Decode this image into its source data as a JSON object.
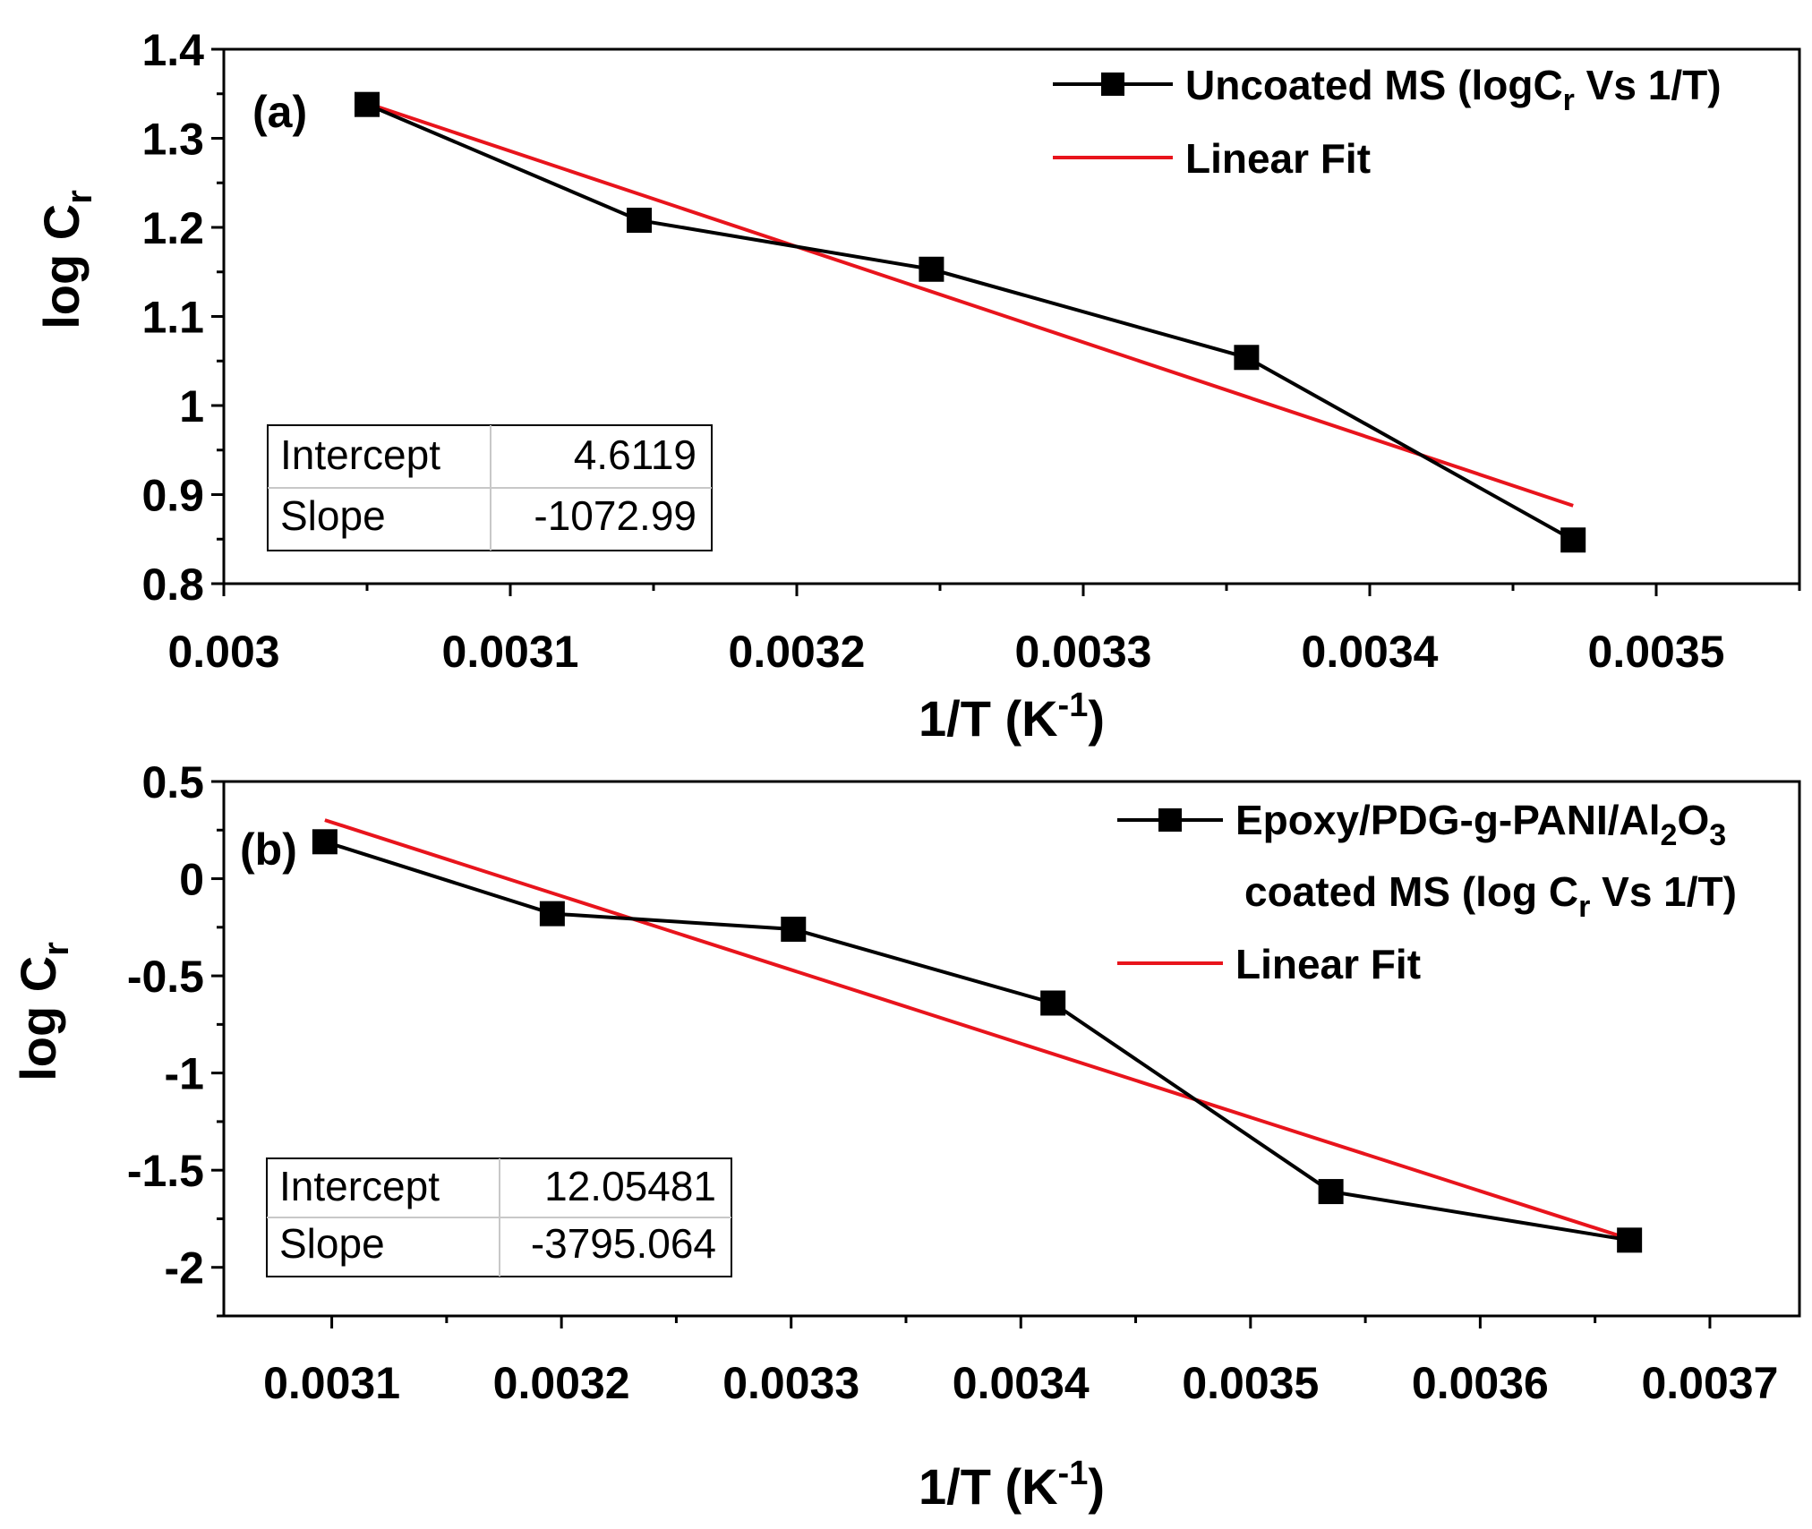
{
  "chart_data": [
    {
      "type": "line",
      "panel_label": "(a)",
      "xlabel": "1/T (K",
      "xlabel_sup": "-1",
      "xlabel_end": ")",
      "ylabel": "log C",
      "ylabel_sub": "r",
      "xlim": [
        0.003,
        0.00355
      ],
      "ylim": [
        0.8,
        1.4
      ],
      "x_ticks": [
        0.003,
        0.0031,
        0.0032,
        0.0033,
        0.0034,
        0.0035
      ],
      "x_tick_labels": [
        "0.003",
        "0.0031",
        "0.0032",
        "0.0033",
        "0.0034",
        "0.0035"
      ],
      "y_ticks": [
        0.8,
        0.9,
        1.0,
        1.1,
        1.2,
        1.3,
        1.4
      ],
      "y_tick_labels": [
        "0.8",
        "0.9",
        "1",
        "1.1",
        "1.2",
        "1.3",
        "1.4"
      ],
      "series": [
        {
          "name": "Uncoated MS (logC",
          "name_sub": "r",
          "name_end": " Vs 1/T)",
          "color": "#000000",
          "marker": "square",
          "x": [
            0.00305,
            0.003145,
            0.003247,
            0.003357,
            0.003471
          ],
          "values": [
            1.338,
            1.208,
            1.153,
            1.054,
            0.849
          ]
        },
        {
          "name": "Linear Fit",
          "color": "#e8141c",
          "marker": "none",
          "intercept": 4.6119,
          "slope": -1072.99,
          "x_range": [
            0.00305,
            0.003471
          ]
        }
      ],
      "stats_table": {
        "rows": [
          {
            "label": "Intercept",
            "value": "4.6119"
          },
          {
            "label": "Slope",
            "value": "-1072.99"
          }
        ]
      },
      "legend_position": "top-right"
    },
    {
      "type": "line",
      "panel_label": "(b)",
      "xlabel": "1/T (K",
      "xlabel_sup": "-1",
      "xlabel_end": ")",
      "ylabel": "log C",
      "ylabel_sub": "r",
      "xlim": [
        0.003053,
        0.003739
      ],
      "ylim": [
        -2.25,
        0.5
      ],
      "x_ticks": [
        0.0031,
        0.0032,
        0.0033,
        0.0034,
        0.0035,
        0.0036,
        0.0037
      ],
      "x_tick_labels": [
        "0.0031",
        "0.0032",
        "0.0033",
        "0.0034",
        "0.0035",
        "0.0036",
        "0.0037"
      ],
      "y_ticks": [
        -2,
        -1.5,
        -1,
        -0.5,
        0,
        0.5
      ],
      "y_tick_labels": [
        "-2",
        "-1.5",
        "-1",
        "-0.5",
        "0",
        "0.5"
      ],
      "series": [
        {
          "name": "Epoxy/PDG-g-PANI/Al",
          "name_sub1": "2",
          "name_mid": "O",
          "name_sub2": "3",
          "name_line2": "coated MS (log C",
          "name_line2_sub": "r",
          "name_line2_end": " Vs 1/T)",
          "color": "#000000",
          "marker": "square",
          "x": [
            0.003097,
            0.003196,
            0.003301,
            0.003414,
            0.003535,
            0.003665
          ],
          "values": [
            0.19,
            -0.18,
            -0.26,
            -0.64,
            -1.61,
            -1.86
          ]
        },
        {
          "name": "Linear Fit",
          "color": "#e8141c",
          "marker": "none",
          "intercept": 12.05481,
          "slope": -3795.064,
          "x_range": [
            0.003097,
            0.003665
          ]
        }
      ],
      "stats_table": {
        "rows": [
          {
            "label": "Intercept",
            "value": "12.05481"
          },
          {
            "label": "Slope",
            "value": "-3795.064"
          }
        ]
      },
      "legend_position": "top-right"
    }
  ]
}
